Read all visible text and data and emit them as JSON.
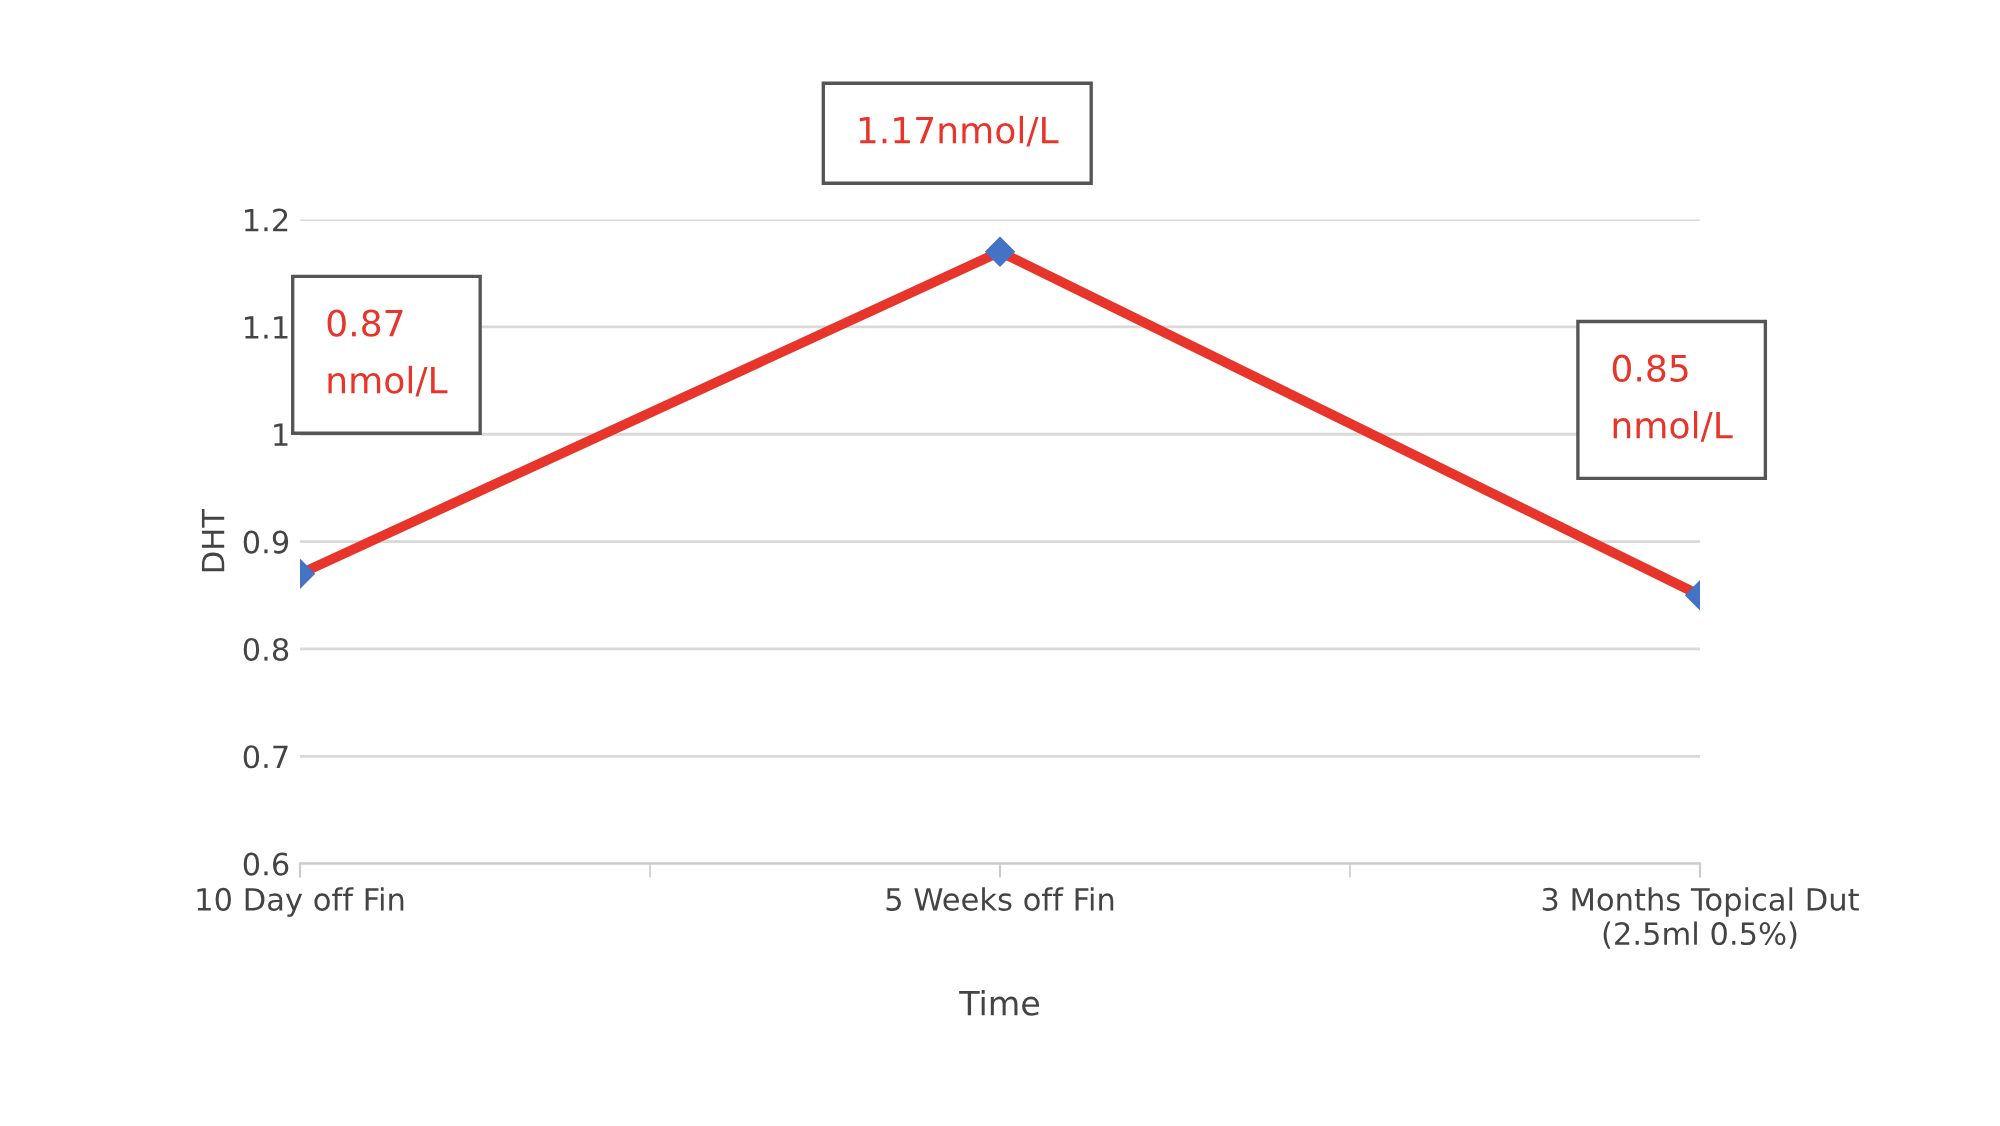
{
  "chart_data": {
    "type": "line",
    "xlabel": "Time",
    "ylabel": "DHT",
    "categories": [
      "10 Day off Fin",
      "5 Weeks off Fin",
      "3 Months Topical Dut\n(2.5ml 0.5%)"
    ],
    "series": [
      {
        "color": "#e8352b",
        "values": [
          0.87,
          1.17,
          0.85
        ]
      }
    ],
    "marker": "diamond",
    "line_style": "solid",
    "ylim": [
      0.6,
      1.2
    ],
    "yticks": [
      0.6,
      0.7,
      0.8,
      0.9,
      1,
      1.1,
      1.2
    ],
    "grid": "y",
    "legend": false,
    "annotations": [
      "0.87\nnmol/L",
      "1.17nmol/L",
      "0.85\nnmol/L"
    ]
  }
}
